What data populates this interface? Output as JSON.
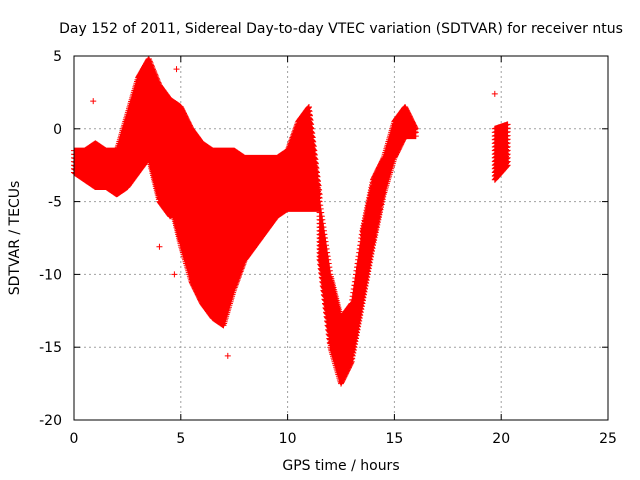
{
  "chart_data": {
    "type": "scatter",
    "title": "Day 152 of 2011, Sidereal Day-to-day VTEC variation (SDTVAR) for receiver ntus",
    "xlabel": "GPS time / hours",
    "ylabel": "SDTVAR / TECUs",
    "xlim": [
      0,
      25
    ],
    "ylim": [
      -20,
      5
    ],
    "xticks": [
      0,
      5,
      10,
      15,
      20,
      25
    ],
    "yticks": [
      -20,
      -15,
      -10,
      -5,
      0,
      5
    ],
    "grid": true,
    "marker": "+",
    "color": "#ff0000",
    "series": [
      {
        "name": "",
        "bands": [
          [
            [
              0,
              -3,
              -1.5
            ],
            [
              0.5,
              -3.5,
              -1.5
            ],
            [
              1,
              -4,
              -1
            ],
            [
              1.5,
              -4,
              -1.5
            ],
            [
              2,
              -4.5,
              -1.5
            ],
            [
              2.5,
              -4,
              1
            ],
            [
              3,
              -3,
              3.5
            ],
            [
              3.5,
              -2,
              4.8
            ],
            [
              4,
              -5,
              3
            ],
            [
              4.5,
              -6,
              2
            ],
            [
              5,
              -5.5,
              1.5
            ],
            [
              5.5,
              -5,
              0
            ],
            [
              6,
              -7.5,
              -1
            ],
            [
              6.5,
              -7.5,
              -1.5
            ],
            [
              7,
              -6,
              -1.5
            ],
            [
              7.5,
              -5,
              -1.5
            ],
            [
              8,
              -5.5,
              -2
            ],
            [
              8.5,
              -6.5,
              -2
            ],
            [
              9,
              -6,
              -2
            ],
            [
              9.5,
              -6,
              -2
            ],
            [
              10,
              -5.5,
              -1.5
            ],
            [
              10.5,
              -5.5,
              0.5
            ],
            [
              11,
              -5.5,
              1.5
            ],
            [
              11.5,
              -5.5,
              -4.5
            ]
          ],
          [
            [
              4.5,
              -5,
              -1
            ],
            [
              5,
              -8,
              -1.5
            ],
            [
              5.5,
              -10.5,
              -2
            ],
            [
              6,
              -12,
              -3.5
            ],
            [
              6.5,
              -13,
              -5
            ],
            [
              7,
              -13.5,
              -6
            ],
            [
              7.5,
              -11,
              -5
            ],
            [
              8,
              -9,
              -4
            ],
            [
              8.5,
              -8,
              -3.5
            ],
            [
              9,
              -7,
              -3
            ],
            [
              9.5,
              -6,
              -2.5
            ]
          ],
          [
            [
              11.5,
              -9,
              -5
            ],
            [
              12,
              -15,
              -10
            ],
            [
              12.5,
              -17.5,
              -13
            ],
            [
              13,
              -16,
              -12
            ],
            [
              13.5,
              -12,
              -7
            ],
            [
              14,
              -8,
              -3.5
            ],
            [
              14.5,
              -4.5,
              -2
            ],
            [
              15,
              -2,
              0.5
            ],
            [
              15.5,
              -0.5,
              1.5
            ],
            [
              16,
              -0.5,
              0
            ]
          ],
          [
            [
              19.7,
              -3.5,
              0
            ],
            [
              20.3,
              -2.5,
              0.3
            ]
          ]
        ],
        "points": [
          [
            0.9,
            1.9
          ],
          [
            4.8,
            4.1
          ],
          [
            4,
            -8.1
          ],
          [
            4.7,
            -10
          ],
          [
            4.7,
            -6
          ],
          [
            7.2,
            -15.6
          ],
          [
            19.7,
            2.4
          ]
        ]
      }
    ]
  }
}
